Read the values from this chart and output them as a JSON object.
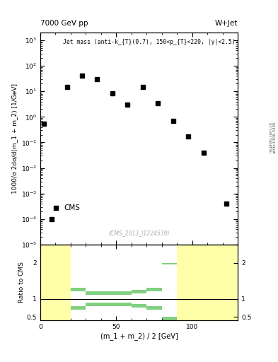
{
  "title_left": "7000 GeV pp",
  "title_right": "W+Jet",
  "annotation": "Jet mass (anti-k_{T}(0.7), 150<p_{T}<220, |y|<2.5)",
  "cms_label": "CMS",
  "watermark": "(CMS_2013_I1224539)",
  "arxiv": "arXiv:1306.3436",
  "mcplots": "mcplots.cern.ch",
  "ylabel_main": "1000/σ 2dσ/d(m_1 + m_2) [1/GeV]",
  "ylabel_ratio": "Ratio to CMS",
  "xlabel": "(m_1 + m_2) / 2 [GeV]",
  "xlim": [
    0,
    130
  ],
  "ylim_main": [
    1e-05,
    2000.0
  ],
  "ylim_ratio": [
    0.4,
    2.5
  ],
  "cms_x": [
    2.5,
    7.5,
    17.5,
    27.5,
    37.5,
    47.5,
    57.5,
    67.5,
    77.5,
    87.5,
    97.5,
    107.5,
    122.5
  ],
  "cms_y": [
    0.55,
    0.0001,
    15.0,
    40.0,
    30.0,
    8.5,
    3.0,
    15.0,
    3.5,
    0.7,
    0.17,
    0.04,
    0.0004
  ],
  "bin_edges": [
    0,
    10,
    20,
    30,
    40,
    50,
    60,
    70,
    80,
    90,
    100,
    110,
    120,
    130
  ],
  "green_upper": [
    2.5,
    2.5,
    1.3,
    1.2,
    1.2,
    1.2,
    1.25,
    1.3,
    2.0,
    2.5,
    2.5,
    2.5,
    2.5
  ],
  "green_lower": [
    0.4,
    0.4,
    0.7,
    0.8,
    0.8,
    0.8,
    0.75,
    0.7,
    0.4,
    0.4,
    0.4,
    0.4,
    0.4
  ],
  "yellow_upper": [
    2.5,
    2.5,
    1.2,
    1.1,
    1.1,
    1.1,
    1.15,
    1.2,
    1.95,
    2.5,
    2.5,
    2.5,
    2.5
  ],
  "yellow_lower": [
    0.4,
    0.4,
    0.8,
    0.9,
    0.9,
    0.9,
    0.85,
    0.8,
    0.5,
    0.4,
    0.4,
    0.4,
    0.4
  ],
  "bg_color": "#ffffff",
  "plot_bg": "#ffffff",
  "green_color": "#80d080",
  "yellow_color": "#ffffaa",
  "marker_color": "black",
  "marker_size": 4.5
}
